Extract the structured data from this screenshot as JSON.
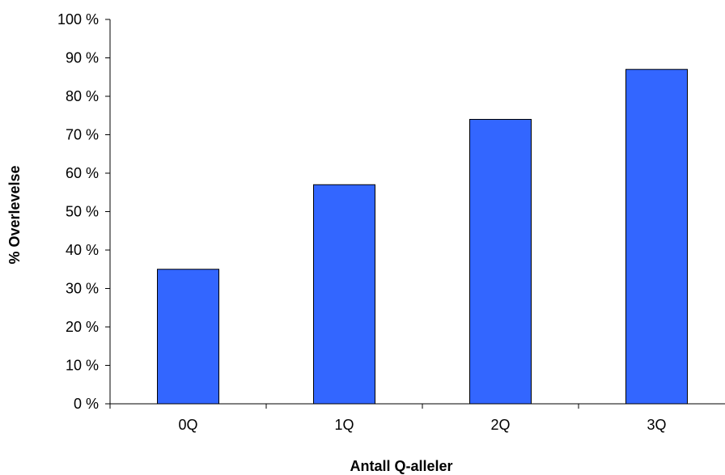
{
  "chart_data": {
    "type": "bar",
    "categories": [
      "0Q",
      "1Q",
      "2Q",
      "3Q"
    ],
    "values": [
      35,
      57,
      74,
      87
    ],
    "title": "",
    "xlabel": "Antall Q-alleler",
    "ylabel": "% Overlevelse",
    "ylim": [
      0,
      100
    ],
    "yticks": [
      0,
      10,
      20,
      30,
      40,
      50,
      60,
      70,
      80,
      90,
      100
    ],
    "ytick_suffix": " %",
    "grid": false,
    "legend": "none",
    "colors": {
      "bar": "#3366ff",
      "axis": "#000000"
    }
  }
}
